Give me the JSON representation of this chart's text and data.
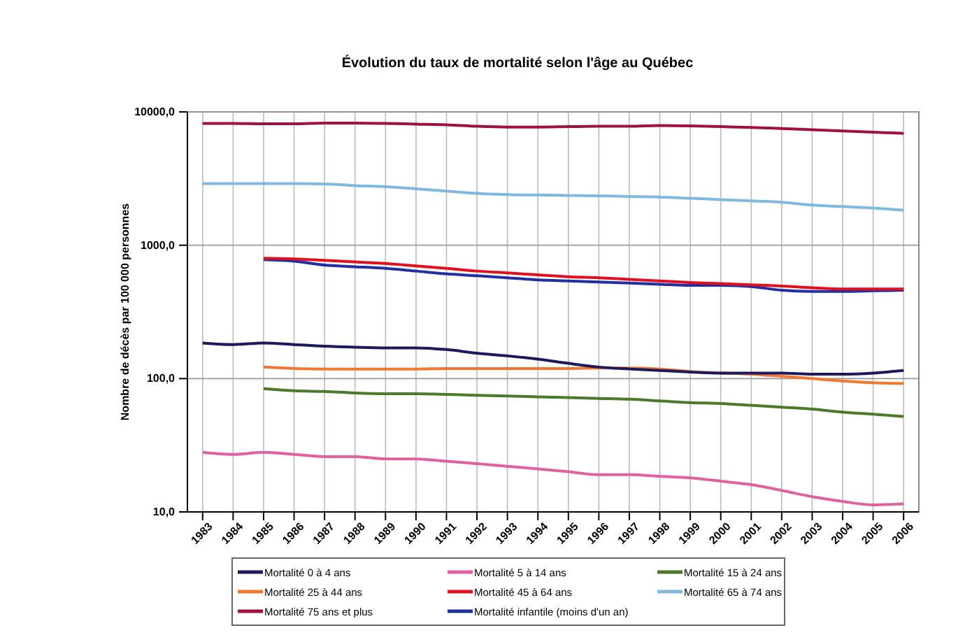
{
  "chart_data": {
    "type": "line",
    "title": "Évolution du taux de mortalité selon l'âge au Québec",
    "ylabel": "Nombre de décès par 100 000 personnes",
    "categories": [
      "1983",
      "1984",
      "1985",
      "1986",
      "1987",
      "1988",
      "1989",
      "1990",
      "1991",
      "1992",
      "1993",
      "1994",
      "1995",
      "1996",
      "1997",
      "1998",
      "1999",
      "2000",
      "2001",
      "2002",
      "2003",
      "2004",
      "2005",
      "2006"
    ],
    "log": true,
    "ylim": [
      10,
      10000
    ],
    "yticks": [
      {
        "value": 10,
        "label": "10,0"
      },
      {
        "value": 100,
        "label": "100,0"
      },
      {
        "value": 1000,
        "label": "1000,0"
      },
      {
        "value": 10000,
        "label": "10000,0"
      }
    ],
    "grid": true,
    "legend": "bottom",
    "marker": "none",
    "line_style": "solid",
    "series": [
      {
        "name": "Mortalité 0 à 4 ans",
        "color": "#1c1a5c",
        "values": [
          185,
          180,
          185,
          180,
          175,
          172,
          170,
          170,
          165,
          155,
          148,
          140,
          130,
          122,
          118,
          115,
          112,
          110,
          110,
          110,
          108,
          108,
          110,
          115
        ]
      },
      {
        "name": "Mortalité 5 à 14 ans",
        "color": "#e060a0",
        "values": [
          28,
          27,
          28,
          27,
          26,
          26,
          25,
          25,
          24,
          23,
          22,
          21,
          20,
          19,
          19,
          18.5,
          18,
          17,
          16,
          14.5,
          13,
          12,
          11.3,
          11.5
        ]
      },
      {
        "name": "Mortalité 15 à 24 ans",
        "color": "#4a7a2a",
        "values": [
          null,
          null,
          84,
          81,
          80,
          78,
          77,
          77,
          76,
          75,
          74,
          73,
          72,
          71,
          70,
          68,
          66,
          65,
          63,
          61,
          59,
          56,
          54,
          52
        ]
      },
      {
        "name": "Mortalité 25 à 44 ans",
        "color": "#f07830",
        "values": [
          null,
          null,
          122,
          119,
          118,
          118,
          118,
          118,
          119,
          119,
          119,
          119,
          119,
          120,
          120,
          118,
          113,
          110,
          108,
          104,
          100,
          96,
          93,
          92
        ]
      },
      {
        "name": "Mortalité 45 à 64 ans",
        "color": "#e01020",
        "values": [
          null,
          null,
          800,
          790,
          770,
          750,
          730,
          700,
          670,
          640,
          620,
          600,
          580,
          570,
          555,
          540,
          525,
          515,
          505,
          495,
          480,
          470,
          470,
          470
        ]
      },
      {
        "name": "Mortalité 65 à 74 ans",
        "color": "#80b8e0",
        "values": [
          2900,
          2900,
          2900,
          2900,
          2880,
          2800,
          2750,
          2650,
          2550,
          2450,
          2400,
          2380,
          2360,
          2350,
          2320,
          2300,
          2250,
          2200,
          2150,
          2100,
          2000,
          1950,
          1900,
          1830
        ]
      },
      {
        "name": "Mortalité 75 ans et plus",
        "color": "#a01040",
        "values": [
          8200,
          8200,
          8150,
          8150,
          8250,
          8250,
          8200,
          8100,
          8000,
          7800,
          7700,
          7700,
          7750,
          7800,
          7800,
          7900,
          7850,
          7750,
          7650,
          7500,
          7350,
          7200,
          7050,
          6900
        ]
      },
      {
        "name": "Mortalité infantile (moins d'un an)",
        "color": "#2030a0",
        "values": [
          null,
          null,
          780,
          760,
          710,
          690,
          670,
          640,
          610,
          590,
          570,
          550,
          540,
          530,
          520,
          510,
          500,
          500,
          490,
          460,
          450,
          450,
          455,
          460
        ]
      }
    ]
  }
}
